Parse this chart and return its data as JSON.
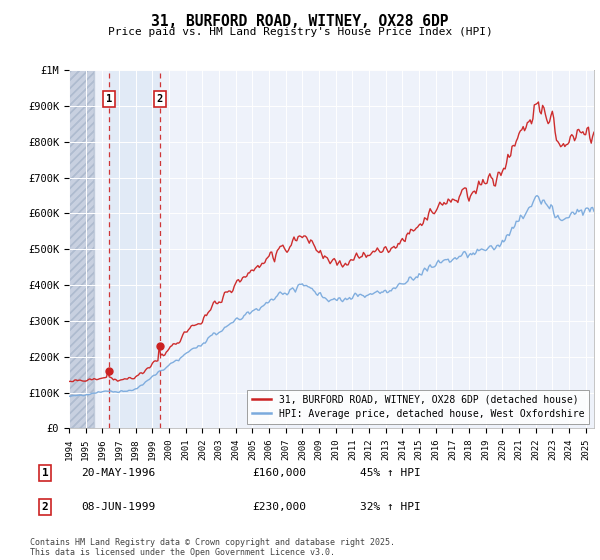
{
  "title": "31, BURFORD ROAD, WITNEY, OX28 6DP",
  "subtitle": "Price paid vs. HM Land Registry's House Price Index (HPI)",
  "legend_line1": "31, BURFORD ROAD, WITNEY, OX28 6DP (detached house)",
  "legend_line2": "HPI: Average price, detached house, West Oxfordshire",
  "hpi_color": "#7aaadd",
  "price_color": "#cc2222",
  "transaction1_date_label": "20-MAY-1996",
  "transaction1_price": 160000,
  "transaction1_pct": "45% ↑ HPI",
  "transaction2_date_label": "08-JUN-1999",
  "transaction2_price": 230000,
  "transaction2_pct": "32% ↑ HPI",
  "footnote": "Contains HM Land Registry data © Crown copyright and database right 2025.\nThis data is licensed under the Open Government Licence v3.0.",
  "ylabel_ticks": [
    "£0",
    "£100K",
    "£200K",
    "£300K",
    "£400K",
    "£500K",
    "£600K",
    "£700K",
    "£800K",
    "£900K",
    "£1M"
  ],
  "ytick_values": [
    0,
    100000,
    200000,
    300000,
    400000,
    500000,
    600000,
    700000,
    800000,
    900000,
    1000000
  ],
  "plot_bg_color": "#eef2fa",
  "hatch_color": "#c8d0e0",
  "band_color": "#dce8f5",
  "grid_color": "#ffffff",
  "t1_year": 1996.38,
  "t2_year": 1999.45
}
